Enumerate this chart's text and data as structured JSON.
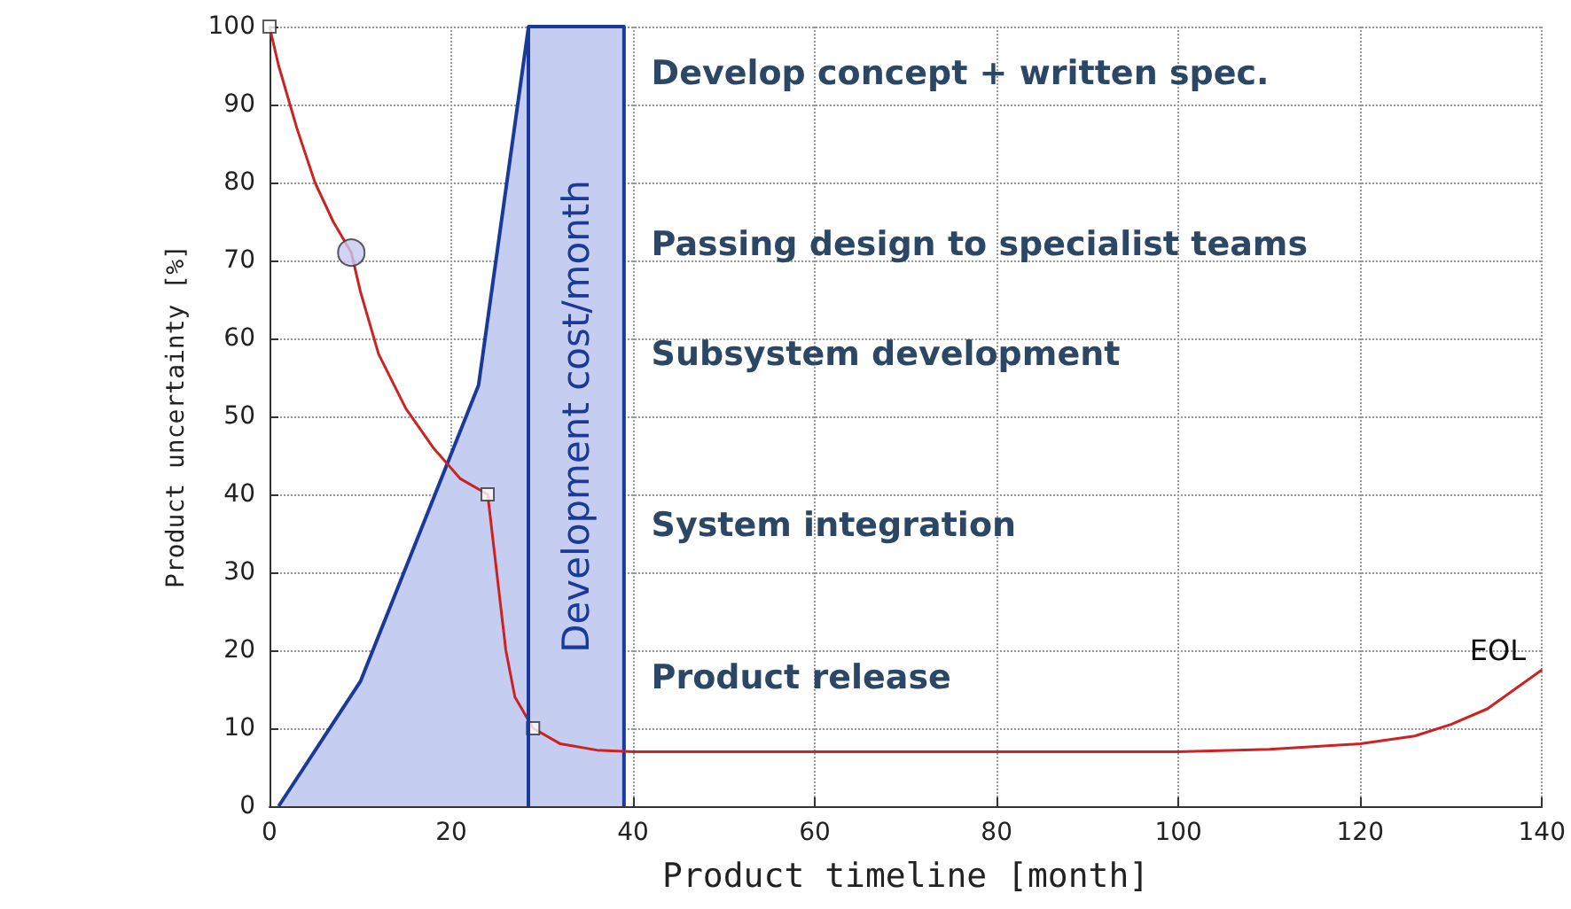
{
  "chart_data": {
    "type": "line",
    "xlabel": "Product timeline [month]",
    "ylabel": "Product uncertainty [%]",
    "xlim": [
      0,
      140
    ],
    "xticks": [
      0,
      20,
      40,
      60,
      80,
      100,
      120,
      140
    ],
    "ylim": [
      0,
      100
    ],
    "yticks": [
      0,
      10,
      20,
      30,
      40,
      50,
      60,
      70,
      80,
      90,
      100
    ],
    "grid": true,
    "legend": false,
    "series": [
      {
        "type": "area",
        "name": "Development cost/month",
        "color": "#1a3a9a",
        "x": [
          1,
          10,
          23,
          28.5,
          39,
          39
        ],
        "values": [
          0,
          16,
          54,
          100,
          100,
          0
        ]
      },
      {
        "type": "line",
        "color": "#cc2222",
        "marker": "none",
        "x": [
          0,
          1,
          3,
          5,
          7,
          9,
          10,
          12,
          15,
          18,
          21,
          24,
          25,
          26,
          27,
          29,
          32,
          36,
          40,
          60,
          80,
          100,
          110,
          120,
          126,
          130,
          134,
          137,
          140
        ],
        "values": [
          100,
          95,
          87,
          80,
          75,
          71,
          66,
          58,
          51,
          46,
          42,
          40,
          30,
          20,
          14,
          10,
          8,
          7.2,
          7,
          7,
          7,
          7,
          7.3,
          8,
          9,
          10.5,
          12.5,
          15,
          17.5
        ]
      },
      {
        "type": "scatter",
        "color": "#ffffff",
        "marker": "square",
        "x": [
          0,
          24,
          29
        ],
        "values": [
          100,
          40,
          10
        ]
      },
      {
        "type": "scatter",
        "color": "#c8c8f0",
        "marker": "circle",
        "x": [
          9
        ],
        "values": [
          71
        ]
      }
    ],
    "ref_lines": [
      {
        "axis": "x",
        "value": 28.5,
        "color": "#1a3a9a",
        "line_style": "solid"
      }
    ],
    "annotations": [
      "Develop concept + written spec.",
      "Passing design to specialist teams",
      "Subsystem development",
      "System integration",
      "Product release",
      "EOL"
    ]
  }
}
